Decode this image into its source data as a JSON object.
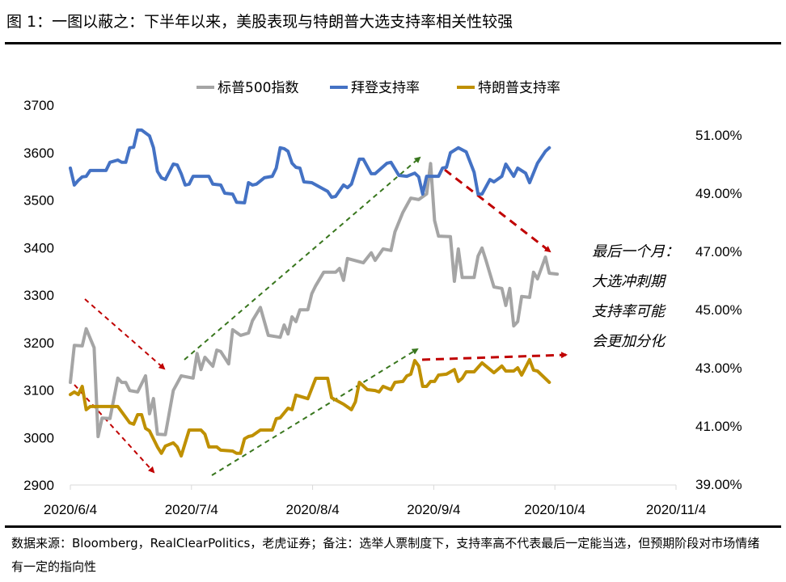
{
  "title": "图 1：一图以蔽之：下半年以来，美股表现与特朗普大选支持率相关性较强",
  "footer": "数据来源：Bloomberg，RealClearPolitics，老虎证券；备注：选举人票制度下，支持率高不代表最后一定能当选，但预期阶段对市场情绪有一定的指向性",
  "chart_data": {
    "type": "line",
    "title": "",
    "legend_position": "top",
    "grid": false,
    "x_tick_labels": [
      "2020/6/4",
      "2020/7/4",
      "2020/8/4",
      "2020/9/4",
      "2020/10/4",
      "2020/11/4"
    ],
    "xlim": [
      "2020-06-04",
      "2020-11-04"
    ],
    "y_left": {
      "ylim": [
        2900,
        3700
      ],
      "tick_labels": [
        "2900",
        "3000",
        "3100",
        "3200",
        "3300",
        "3400",
        "3500",
        "3600",
        "3700"
      ]
    },
    "y_right": {
      "ylim": [
        39,
        51
      ],
      "tick_labels": [
        "39.00%",
        "41.00%",
        "43.00%",
        "45.00%",
        "47.00%",
        "49.00%",
        "51.00%"
      ],
      "unit": "%"
    },
    "annotation": [
      "最后一个月：",
      "大选冲刺期",
      "支持率可能",
      "会更加分化"
    ],
    "series": [
      {
        "name": "标普500指数",
        "axis": "left",
        "color": "#a5a5a5",
        "points": [
          [
            "2020-06-04",
            3116
          ],
          [
            "2020-06-05",
            3194
          ],
          [
            "2020-06-07",
            3193
          ],
          [
            "2020-06-08",
            3229
          ],
          [
            "2020-06-10",
            3189
          ],
          [
            "2020-06-11",
            3002
          ],
          [
            "2020-06-12",
            3041
          ],
          [
            "2020-06-14",
            3040
          ],
          [
            "2020-06-16",
            3125
          ],
          [
            "2020-06-17",
            3116
          ],
          [
            "2020-06-18",
            3116
          ],
          [
            "2020-06-19",
            3099
          ],
          [
            "2020-06-21",
            3096
          ],
          [
            "2020-06-23",
            3130
          ],
          [
            "2020-06-24",
            3050
          ],
          [
            "2020-06-25",
            3082
          ],
          [
            "2020-06-26",
            3007
          ],
          [
            "2020-06-28",
            3006
          ],
          [
            "2020-06-30",
            3099
          ],
          [
            "2020-07-02",
            3130
          ],
          [
            "2020-07-05",
            3125
          ],
          [
            "2020-07-06",
            3177
          ],
          [
            "2020-07-07",
            3143
          ],
          [
            "2020-07-08",
            3169
          ],
          [
            "2020-07-10",
            3150
          ],
          [
            "2020-07-11",
            3184
          ],
          [
            "2020-07-12",
            3181
          ],
          [
            "2020-07-14",
            3155
          ],
          [
            "2020-07-15",
            3227
          ],
          [
            "2020-07-17",
            3215
          ],
          [
            "2020-07-19",
            3220
          ],
          [
            "2020-07-20",
            3246
          ],
          [
            "2020-07-22",
            3274
          ],
          [
            "2020-07-24",
            3215
          ],
          [
            "2020-07-27",
            3211
          ],
          [
            "2020-07-28",
            3237
          ],
          [
            "2020-07-29",
            3218
          ],
          [
            "2020-07-30",
            3254
          ],
          [
            "2020-07-31",
            3244
          ],
          [
            "2020-08-01",
            3269
          ],
          [
            "2020-08-03",
            3269
          ],
          [
            "2020-08-04",
            3303
          ],
          [
            "2020-08-05",
            3320
          ],
          [
            "2020-08-07",
            3348
          ],
          [
            "2020-08-10",
            3348
          ],
          [
            "2020-08-11",
            3356
          ],
          [
            "2020-08-12",
            3331
          ],
          [
            "2020-08-13",
            3377
          ],
          [
            "2020-08-17",
            3368
          ],
          [
            "2020-08-19",
            3389
          ],
          [
            "2020-08-20",
            3373
          ],
          [
            "2020-08-22",
            3397
          ],
          [
            "2020-08-24",
            3394
          ],
          [
            "2020-08-25",
            3433
          ],
          [
            "2020-08-27",
            3474
          ],
          [
            "2020-08-29",
            3504
          ],
          [
            "2020-08-31",
            3501
          ],
          [
            "2020-09-02",
            3513
          ],
          [
            "2020-09-03",
            3577
          ],
          [
            "2020-09-04",
            3457
          ],
          [
            "2020-09-05",
            3424
          ],
          [
            "2020-09-08",
            3423
          ],
          [
            "2020-09-09",
            3329
          ],
          [
            "2020-09-10",
            3397
          ],
          [
            "2020-09-11",
            3337
          ],
          [
            "2020-09-14",
            3337
          ],
          [
            "2020-09-15",
            3382
          ],
          [
            "2020-09-16",
            3399
          ],
          [
            "2020-09-17",
            3373
          ],
          [
            "2020-09-19",
            3317
          ],
          [
            "2020-09-21",
            3314
          ],
          [
            "2020-09-22",
            3278
          ],
          [
            "2020-09-23",
            3314
          ],
          [
            "2020-09-24",
            3235
          ],
          [
            "2020-09-25",
            3244
          ],
          [
            "2020-09-26",
            3297
          ],
          [
            "2020-09-28",
            3295
          ],
          [
            "2020-09-29",
            3348
          ],
          [
            "2020-09-30",
            3334
          ],
          [
            "2020-10-02",
            3380
          ],
          [
            "2020-10-03",
            3346
          ],
          [
            "2020-10-05",
            3344
          ]
        ]
      },
      {
        "name": "拜登支持率",
        "axis": "right",
        "color": "#4472c4",
        "points": [
          [
            "2020-06-04",
            49.86
          ],
          [
            "2020-06-05",
            49.28
          ],
          [
            "2020-06-06",
            49.44
          ],
          [
            "2020-06-07",
            49.56
          ],
          [
            "2020-06-08",
            49.58
          ],
          [
            "2020-06-09",
            49.78
          ],
          [
            "2020-06-13",
            49.78
          ],
          [
            "2020-06-14",
            50.06
          ],
          [
            "2020-06-16",
            50.14
          ],
          [
            "2020-06-17",
            50.06
          ],
          [
            "2020-06-18",
            50.06
          ],
          [
            "2020-06-19",
            50.56
          ],
          [
            "2020-06-20",
            50.58
          ],
          [
            "2020-06-21",
            51.17
          ],
          [
            "2020-06-22",
            51.17
          ],
          [
            "2020-06-24",
            50.97
          ],
          [
            "2020-06-25",
            50.56
          ],
          [
            "2020-06-26",
            49.75
          ],
          [
            "2020-06-27",
            49.53
          ],
          [
            "2020-06-28",
            49.47
          ],
          [
            "2020-06-30",
            50.0
          ],
          [
            "2020-07-01",
            49.97
          ],
          [
            "2020-07-02",
            49.67
          ],
          [
            "2020-07-03",
            49.28
          ],
          [
            "2020-07-04",
            49.31
          ],
          [
            "2020-07-05",
            49.58
          ],
          [
            "2020-07-09",
            49.58
          ],
          [
            "2020-07-10",
            49.31
          ],
          [
            "2020-07-12",
            49.28
          ],
          [
            "2020-07-13",
            49.0
          ],
          [
            "2020-07-15",
            48.97
          ],
          [
            "2020-07-16",
            48.69
          ],
          [
            "2020-07-18",
            48.67
          ],
          [
            "2020-07-19",
            49.36
          ],
          [
            "2020-07-20",
            49.28
          ],
          [
            "2020-07-21",
            49.31
          ],
          [
            "2020-07-23",
            49.53
          ],
          [
            "2020-07-25",
            49.58
          ],
          [
            "2020-07-26",
            49.86
          ],
          [
            "2020-07-27",
            50.56
          ],
          [
            "2020-07-28",
            50.53
          ],
          [
            "2020-07-29",
            50.44
          ],
          [
            "2020-07-30",
            50.03
          ],
          [
            "2020-07-31",
            49.89
          ],
          [
            "2020-08-01",
            49.86
          ],
          [
            "2020-08-02",
            49.39
          ],
          [
            "2020-08-04",
            49.36
          ],
          [
            "2020-08-08",
            49.06
          ],
          [
            "2020-08-09",
            48.86
          ],
          [
            "2020-08-10",
            48.89
          ],
          [
            "2020-08-12",
            49.28
          ],
          [
            "2020-08-13",
            49.19
          ],
          [
            "2020-08-14",
            49.31
          ],
          [
            "2020-08-16",
            50.17
          ],
          [
            "2020-08-17",
            50.17
          ],
          [
            "2020-08-19",
            49.67
          ],
          [
            "2020-08-20",
            49.67
          ],
          [
            "2020-08-23",
            50.03
          ],
          [
            "2020-08-24",
            50.06
          ],
          [
            "2020-08-26",
            49.61
          ],
          [
            "2020-08-28",
            49.58
          ],
          [
            "2020-08-30",
            49.69
          ],
          [
            "2020-08-31",
            49.56
          ],
          [
            "2020-09-01",
            48.97
          ],
          [
            "2020-09-02",
            49.58
          ],
          [
            "2020-09-05",
            49.58
          ],
          [
            "2020-09-06",
            49.86
          ],
          [
            "2020-09-07",
            49.89
          ],
          [
            "2020-09-08",
            50.39
          ],
          [
            "2020-09-10",
            50.56
          ],
          [
            "2020-09-12",
            50.42
          ],
          [
            "2020-09-14",
            49.72
          ],
          [
            "2020-09-15",
            48.97
          ],
          [
            "2020-09-16",
            48.97
          ],
          [
            "2020-09-18",
            49.47
          ],
          [
            "2020-09-19",
            49.39
          ],
          [
            "2020-09-21",
            49.58
          ],
          [
            "2020-09-22",
            50.0
          ],
          [
            "2020-09-24",
            49.58
          ],
          [
            "2020-09-25",
            49.86
          ],
          [
            "2020-09-27",
            49.69
          ],
          [
            "2020-09-28",
            49.36
          ],
          [
            "2020-09-30",
            50.03
          ],
          [
            "2020-10-02",
            50.44
          ],
          [
            "2020-10-03",
            50.56
          ]
        ]
      },
      {
        "name": "特朗普支持率",
        "axis": "right",
        "color": "#bf9000",
        "points": [
          [
            "2020-06-04",
            42.08
          ],
          [
            "2020-06-05",
            42.17
          ],
          [
            "2020-06-06",
            42.08
          ],
          [
            "2020-06-07",
            42.36
          ],
          [
            "2020-06-08",
            41.56
          ],
          [
            "2020-06-09",
            41.67
          ],
          [
            "2020-06-16",
            41.67
          ],
          [
            "2020-06-19",
            41.11
          ],
          [
            "2020-06-20",
            41.06
          ],
          [
            "2020-06-21",
            41.39
          ],
          [
            "2020-06-22",
            41.39
          ],
          [
            "2020-06-23",
            40.92
          ],
          [
            "2020-06-24",
            40.83
          ],
          [
            "2020-06-26",
            40.28
          ],
          [
            "2020-06-27",
            40.06
          ],
          [
            "2020-06-28",
            40.31
          ],
          [
            "2020-06-30",
            40.42
          ],
          [
            "2020-07-01",
            40.28
          ],
          [
            "2020-07-02",
            39.97
          ],
          [
            "2020-07-04",
            40.86
          ],
          [
            "2020-07-07",
            40.86
          ],
          [
            "2020-07-08",
            40.72
          ],
          [
            "2020-07-09",
            40.28
          ],
          [
            "2020-07-11",
            40.28
          ],
          [
            "2020-07-12",
            40.17
          ],
          [
            "2020-07-15",
            40.14
          ],
          [
            "2020-07-16",
            40.06
          ],
          [
            "2020-07-17",
            40.06
          ],
          [
            "2020-07-18",
            40.56
          ],
          [
            "2020-07-19",
            40.64
          ],
          [
            "2020-07-20",
            40.67
          ],
          [
            "2020-07-22",
            40.86
          ],
          [
            "2020-07-25",
            40.86
          ],
          [
            "2020-07-26",
            41.25
          ],
          [
            "2020-07-27",
            41.28
          ],
          [
            "2020-07-29",
            41.61
          ],
          [
            "2020-07-30",
            41.56
          ],
          [
            "2020-07-31",
            42.06
          ],
          [
            "2020-08-03",
            41.94
          ],
          [
            "2020-08-05",
            42.64
          ],
          [
            "2020-08-08",
            42.64
          ],
          [
            "2020-08-09",
            41.97
          ],
          [
            "2020-08-12",
            41.75
          ],
          [
            "2020-08-14",
            41.56
          ],
          [
            "2020-08-15",
            41.83
          ],
          [
            "2020-08-16",
            42.5
          ],
          [
            "2020-08-18",
            42.25
          ],
          [
            "2020-08-20",
            42.22
          ],
          [
            "2020-08-21",
            42.17
          ],
          [
            "2020-08-22",
            42.36
          ],
          [
            "2020-08-24",
            42.25
          ],
          [
            "2020-08-25",
            42.5
          ],
          [
            "2020-08-27",
            42.53
          ],
          [
            "2020-08-28",
            42.72
          ],
          [
            "2020-08-29",
            42.78
          ],
          [
            "2020-08-30",
            43.25
          ],
          [
            "2020-08-31",
            43.06
          ],
          [
            "2020-09-01",
            42.36
          ],
          [
            "2020-09-02",
            42.36
          ],
          [
            "2020-09-03",
            42.53
          ],
          [
            "2020-09-04",
            42.53
          ],
          [
            "2020-09-05",
            42.75
          ],
          [
            "2020-09-07",
            42.78
          ],
          [
            "2020-09-09",
            42.94
          ],
          [
            "2020-09-10",
            42.53
          ],
          [
            "2020-09-11",
            42.64
          ],
          [
            "2020-09-12",
            42.86
          ],
          [
            "2020-09-14",
            42.86
          ],
          [
            "2020-09-16",
            43.17
          ],
          [
            "2020-09-19",
            42.83
          ],
          [
            "2020-09-21",
            43.06
          ],
          [
            "2020-09-22",
            42.89
          ],
          [
            "2020-09-24",
            42.89
          ],
          [
            "2020-09-25",
            43.0
          ],
          [
            "2020-09-26",
            42.75
          ],
          [
            "2020-09-28",
            43.28
          ],
          [
            "2020-09-29",
            42.92
          ],
          [
            "2020-09-30",
            42.89
          ],
          [
            "2020-10-03",
            42.5
          ]
        ]
      }
    ]
  }
}
